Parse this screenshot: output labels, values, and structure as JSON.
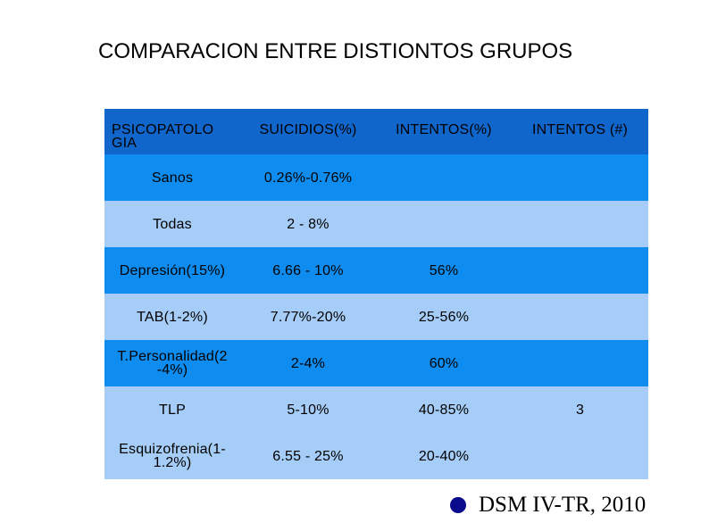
{
  "title": "COMPARACION ENTRE DISTIONTOS GRUPOS",
  "table": {
    "headers": [
      "PSICOPATOLO GIA",
      "SUICIDIOS(%)",
      "INTENTOS(%)",
      "INTENTOS (#)"
    ],
    "rows": [
      [
        "Sanos",
        "0.26%-0.76%",
        "",
        ""
      ],
      [
        "Todas",
        "2 - 8%",
        "",
        ""
      ],
      [
        "Depresión(15%)",
        "6.66 - 10%",
        "56%",
        ""
      ],
      [
        "TAB(1-2%)",
        "7.77%-20%",
        "25-56%",
        ""
      ],
      [
        "T.Personalidad(2 -4%)",
        "2-4%",
        "60%",
        ""
      ],
      [
        "TLP",
        "5-10%",
        "40-85%",
        "3"
      ],
      [
        "Esquizofrenia(1- 1.2%)",
        "6.55 - 25%",
        "20-40%",
        ""
      ]
    ]
  },
  "reference": "DSM IV-TR, 2010",
  "colors": {
    "header_bg": "#1166cc",
    "row_dark": "#0f8cf0",
    "row_light": "#a6cdf7",
    "bullet": "#0a0a8c"
  }
}
